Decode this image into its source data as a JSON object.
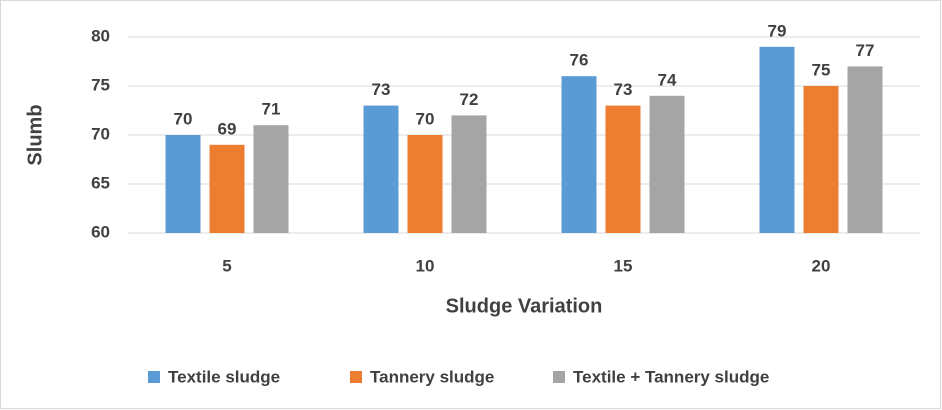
{
  "chart_data": {
    "type": "bar",
    "categories": [
      "5",
      "10",
      "15",
      "20"
    ],
    "series": [
      {
        "name": "Textile sludge",
        "color": "#5b9bd5",
        "values": [
          70,
          73,
          76,
          79
        ]
      },
      {
        "name": "Tannery sludge",
        "color": "#ed7d31",
        "values": [
          69,
          70,
          73,
          75
        ]
      },
      {
        "name": "Textile + Tannery sludge",
        "color": "#a5a5a5",
        "values": [
          71,
          72,
          74,
          77
        ]
      }
    ],
    "xlabel": "Sludge Variation",
    "ylabel": "Slumb",
    "ylim": [
      60,
      80
    ],
    "yticks": [
      60,
      65,
      70,
      75,
      80
    ],
    "grid": true,
    "legend": "bottom"
  }
}
